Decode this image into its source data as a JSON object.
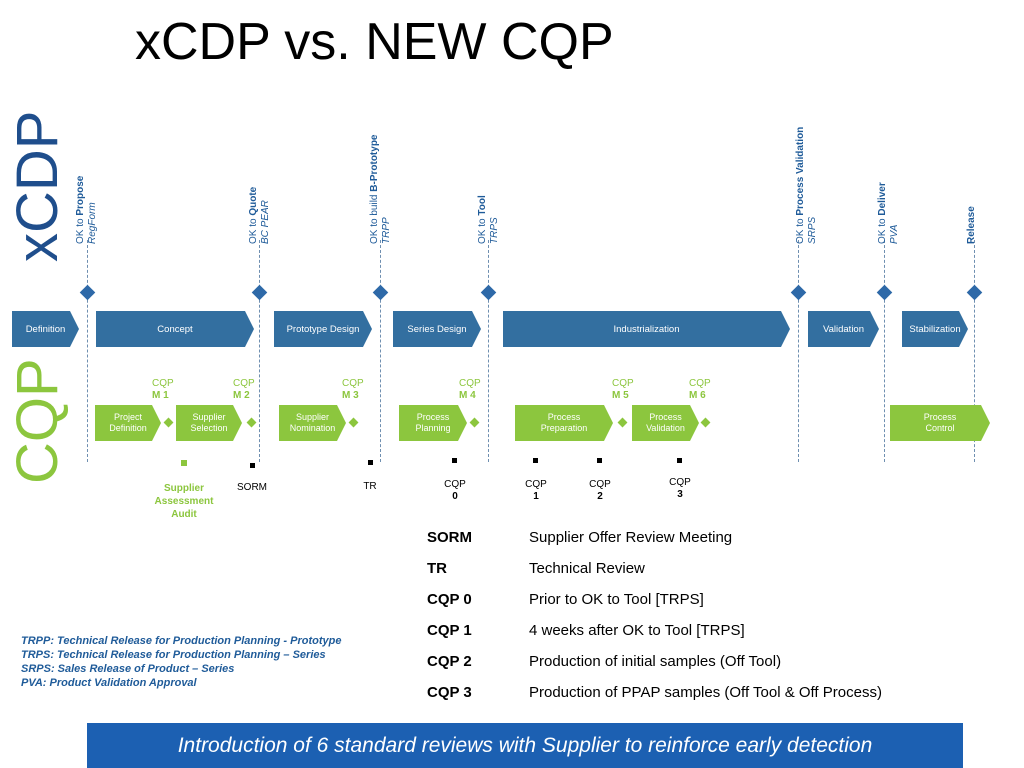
{
  "title": "xCDP vs. NEW CQP",
  "side_labels": {
    "xcdp": "xCDP",
    "cqp": "CQP"
  },
  "milestones": [
    {
      "prefix": "OK to ",
      "bold": "Propose",
      "sub": "RegForm"
    },
    {
      "prefix": "OK to ",
      "bold": "Quote",
      "sub": "BC PEAR"
    },
    {
      "prefix": "OK to build ",
      "bold": "B-Prototype",
      "sub": "TRPP"
    },
    {
      "prefix": "OK to ",
      "bold": "Tool",
      "sub": "TRPS"
    },
    {
      "prefix": "OK to ",
      "bold": "Process Validation",
      "sub": "SRPS"
    },
    {
      "prefix": "OK to ",
      "bold": "Deliver",
      "sub": "PVA"
    },
    {
      "prefix": "",
      "bold": "Release",
      "sub": ""
    }
  ],
  "phases": [
    "Definition",
    "Concept",
    "Prototype Design",
    "Series Design",
    "Industrialization",
    "Validation",
    "Stabilization"
  ],
  "cqp_milestones": [
    {
      "line1": "CQP",
      "line2": "M 1"
    },
    {
      "line1": "CQP",
      "line2": "M 2"
    },
    {
      "line1": "CQP",
      "line2": "M 3"
    },
    {
      "line1": "CQP",
      "line2": "M 4"
    },
    {
      "line1": "CQP",
      "line2": "M 5"
    },
    {
      "line1": "CQP",
      "line2": "M 6"
    }
  ],
  "cqp_phases": [
    {
      "line1": "Project",
      "line2": "Definition"
    },
    {
      "line1": "Supplier",
      "line2": "Selection"
    },
    {
      "line1": "Supplier",
      "line2": "Nomination"
    },
    {
      "line1": "Process",
      "line2": "Planning"
    },
    {
      "line1": "Process",
      "line2": "Preparation"
    },
    {
      "line1": "Process",
      "line2": "Validation"
    },
    {
      "line1": "Process",
      "line2": "Control"
    }
  ],
  "reviews": {
    "audit": [
      "Supplier",
      "Assessment",
      "Audit"
    ],
    "sorm": "SORM",
    "tr": "TR",
    "cqp0": {
      "line1": "CQP",
      "line2": "0"
    },
    "cqp1": {
      "line1": "CQP",
      "line2": "1"
    },
    "cqp2": {
      "line1": "CQP",
      "line2": "2"
    },
    "cqp3": {
      "line1": "CQP",
      "line2": "3"
    }
  },
  "legend": [
    {
      "key": "SORM",
      "value": "Supplier Offer Review Meeting"
    },
    {
      "key": "TR",
      "value": "Technical Review"
    },
    {
      "key": "CQP 0",
      "value": "Prior to OK to Tool [TRPS]"
    },
    {
      "key": "CQP 1",
      "value": "4 weeks after OK to Tool [TRPS]"
    },
    {
      "key": "CQP 2",
      "value": "Production of initial samples (Off Tool)"
    },
    {
      "key": "CQP 3",
      "value": "Production of PPAP samples (Off Tool & Off Process)"
    }
  ],
  "notes": [
    "TRPP: Technical Release for Production Planning - Prototype",
    "TRPS: Technical Release for Production Planning – Series",
    "SRPS: Sales Release of Product – Series",
    "PVA: Product Validation Approval"
  ],
  "banner": "Introduction of 6 standard reviews with Supplier to reinforce early detection",
  "colors": {
    "blue": "#336fa0",
    "green": "#8cc63e",
    "banner": "#1c60b2",
    "text_blue": "#1f5b99"
  }
}
